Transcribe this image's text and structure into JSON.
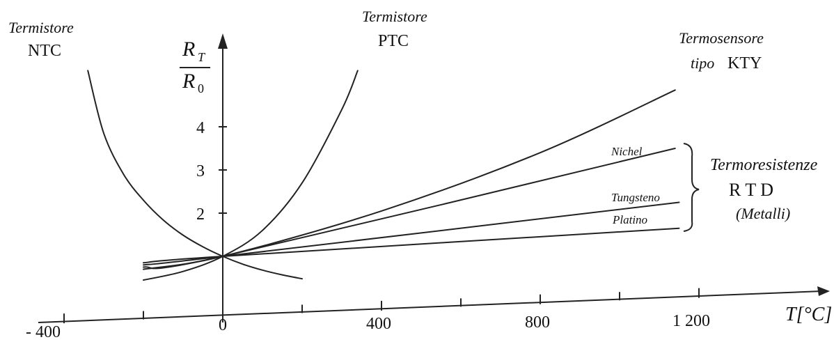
{
  "chart_data": {
    "type": "line",
    "xlabel": "T[°C]",
    "ylabel_numerator": "R",
    "ylabel_numerator_sub": "T",
    "ylabel_denominator": "R",
    "ylabel_denominator_sub": "0",
    "x_ticks": [
      -400,
      0,
      400,
      800,
      1200
    ],
    "x_tick_labels": [
      "- 400",
      "0",
      "400",
      "800",
      "1 200"
    ],
    "y_ticks": [
      2,
      3,
      4
    ],
    "y_tick_labels": [
      "2",
      "3",
      "4"
    ],
    "xlim": [
      -460,
      1530
    ],
    "ylim": [
      0,
      5.4
    ],
    "series": [
      {
        "name": "NTC",
        "x": [
          -340,
          -300,
          -250,
          -200,
          -150,
          -100,
          -50,
          0,
          50,
          100,
          150,
          200
        ],
        "y": [
          5.3,
          3.85,
          2.9,
          2.3,
          1.84,
          1.49,
          1.22,
          1.0,
          0.82,
          0.68,
          0.57,
          0.48
        ]
      },
      {
        "name": "PTC",
        "x": [
          -200,
          -100,
          0,
          100,
          200,
          300,
          340
        ],
        "y": [
          0.45,
          0.65,
          1.0,
          1.6,
          2.7,
          4.4,
          5.3
        ]
      },
      {
        "name": "Termosensore tipo KTY",
        "x": [
          -200,
          0,
          400,
          800,
          1140
        ],
        "y": [
          0.7,
          1.0,
          2.05,
          3.4,
          4.85
        ]
      },
      {
        "name": "Nichel",
        "x": [
          -200,
          0,
          1140
        ],
        "y": [
          0.75,
          1.0,
          3.5
        ]
      },
      {
        "name": "Tungsteno",
        "x": [
          -200,
          0,
          1150
        ],
        "y": [
          0.8,
          1.0,
          2.25
        ]
      },
      {
        "name": "Platino",
        "x": [
          -200,
          0,
          1150
        ],
        "y": [
          0.85,
          1.0,
          1.65
        ]
      }
    ]
  },
  "labels": {
    "ntc_title": "Termistore",
    "ntc_name": "NTC",
    "ptc_title": "Termistore",
    "ptc_name": "PTC",
    "kty_title": "Termosensore",
    "kty_sub1": "tipo",
    "kty_sub2": "KTY",
    "nichel": "Nichel",
    "tungsteno": "Tungsteno",
    "platino": "Platino",
    "rtd_title": "Termoresistenze",
    "rtd_name": "R T D",
    "rtd_sub": "(Metalli)"
  }
}
